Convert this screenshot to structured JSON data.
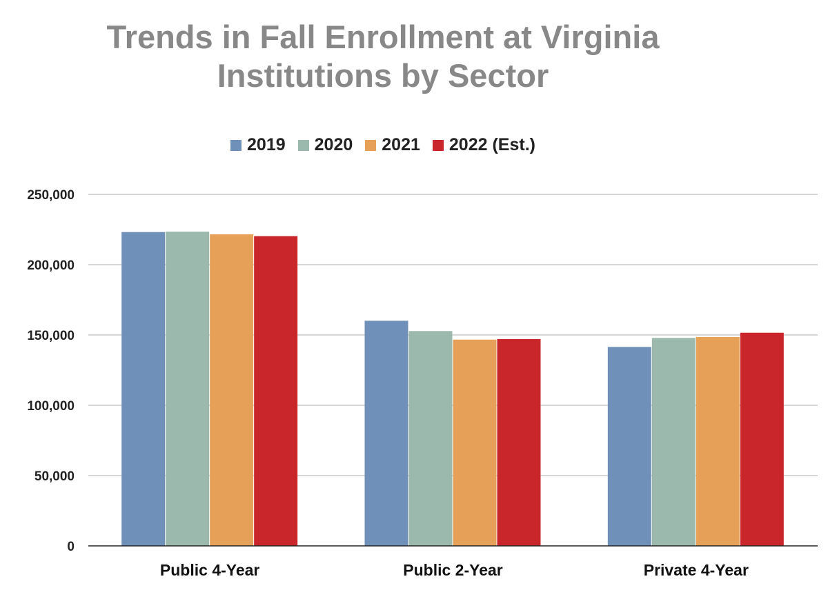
{
  "chart_data": {
    "type": "bar",
    "title_lines": [
      "Trends in Fall Enrollment at Virginia",
      "Institutions by Sector"
    ],
    "categories": [
      "Public 4-Year",
      "Public 2-Year",
      "Private 4-Year"
    ],
    "series": [
      {
        "name": "2019",
        "color": "#6f91b9",
        "values": [
          223200,
          160100,
          141500
        ]
      },
      {
        "name": "2020",
        "color": "#9bbaad",
        "values": [
          223500,
          152800,
          147900
        ]
      },
      {
        "name": "2021",
        "color": "#e6a057",
        "values": [
          221600,
          146700,
          148500
        ]
      },
      {
        "name": "2022 (Est.)",
        "color": "#c9262c",
        "values": [
          220300,
          147100,
          151600
        ]
      }
    ],
    "ylim": [
      0,
      250000
    ],
    "yticks": [
      0,
      50000,
      100000,
      150000,
      200000,
      250000
    ],
    "ytick_labels": [
      "0",
      "50,000",
      "100,000",
      "150,000",
      "200,000",
      "250,000"
    ],
    "xlabel": "",
    "ylabel": "",
    "grid": true,
    "legend_position": "top"
  }
}
